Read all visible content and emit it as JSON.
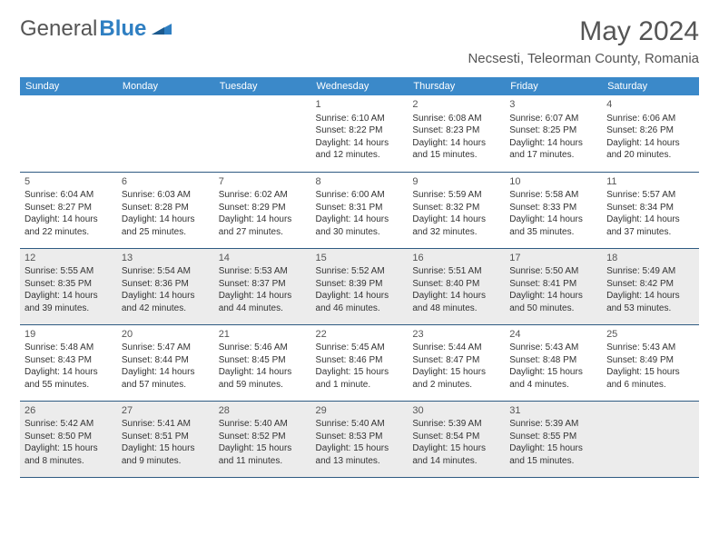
{
  "logo": {
    "part1": "General",
    "part2": "Blue"
  },
  "title": "May 2024",
  "location": "Necsesti, Teleorman County, Romania",
  "header_bg": "#3b89c9",
  "shaded_bg": "#ececec",
  "border_color": "#2f5b82",
  "days_of_week": [
    "Sunday",
    "Monday",
    "Tuesday",
    "Wednesday",
    "Thursday",
    "Friday",
    "Saturday"
  ],
  "weeks": [
    {
      "shaded": false,
      "cells": [
        {
          "num": "",
          "sunrise": "",
          "sunset": "",
          "daylight": ""
        },
        {
          "num": "",
          "sunrise": "",
          "sunset": "",
          "daylight": ""
        },
        {
          "num": "",
          "sunrise": "",
          "sunset": "",
          "daylight": ""
        },
        {
          "num": "1",
          "sunrise": "Sunrise: 6:10 AM",
          "sunset": "Sunset: 8:22 PM",
          "daylight": "Daylight: 14 hours and 12 minutes."
        },
        {
          "num": "2",
          "sunrise": "Sunrise: 6:08 AM",
          "sunset": "Sunset: 8:23 PM",
          "daylight": "Daylight: 14 hours and 15 minutes."
        },
        {
          "num": "3",
          "sunrise": "Sunrise: 6:07 AM",
          "sunset": "Sunset: 8:25 PM",
          "daylight": "Daylight: 14 hours and 17 minutes."
        },
        {
          "num": "4",
          "sunrise": "Sunrise: 6:06 AM",
          "sunset": "Sunset: 8:26 PM",
          "daylight": "Daylight: 14 hours and 20 minutes."
        }
      ]
    },
    {
      "shaded": false,
      "cells": [
        {
          "num": "5",
          "sunrise": "Sunrise: 6:04 AM",
          "sunset": "Sunset: 8:27 PM",
          "daylight": "Daylight: 14 hours and 22 minutes."
        },
        {
          "num": "6",
          "sunrise": "Sunrise: 6:03 AM",
          "sunset": "Sunset: 8:28 PM",
          "daylight": "Daylight: 14 hours and 25 minutes."
        },
        {
          "num": "7",
          "sunrise": "Sunrise: 6:02 AM",
          "sunset": "Sunset: 8:29 PM",
          "daylight": "Daylight: 14 hours and 27 minutes."
        },
        {
          "num": "8",
          "sunrise": "Sunrise: 6:00 AM",
          "sunset": "Sunset: 8:31 PM",
          "daylight": "Daylight: 14 hours and 30 minutes."
        },
        {
          "num": "9",
          "sunrise": "Sunrise: 5:59 AM",
          "sunset": "Sunset: 8:32 PM",
          "daylight": "Daylight: 14 hours and 32 minutes."
        },
        {
          "num": "10",
          "sunrise": "Sunrise: 5:58 AM",
          "sunset": "Sunset: 8:33 PM",
          "daylight": "Daylight: 14 hours and 35 minutes."
        },
        {
          "num": "11",
          "sunrise": "Sunrise: 5:57 AM",
          "sunset": "Sunset: 8:34 PM",
          "daylight": "Daylight: 14 hours and 37 minutes."
        }
      ]
    },
    {
      "shaded": true,
      "cells": [
        {
          "num": "12",
          "sunrise": "Sunrise: 5:55 AM",
          "sunset": "Sunset: 8:35 PM",
          "daylight": "Daylight: 14 hours and 39 minutes."
        },
        {
          "num": "13",
          "sunrise": "Sunrise: 5:54 AM",
          "sunset": "Sunset: 8:36 PM",
          "daylight": "Daylight: 14 hours and 42 minutes."
        },
        {
          "num": "14",
          "sunrise": "Sunrise: 5:53 AM",
          "sunset": "Sunset: 8:37 PM",
          "daylight": "Daylight: 14 hours and 44 minutes."
        },
        {
          "num": "15",
          "sunrise": "Sunrise: 5:52 AM",
          "sunset": "Sunset: 8:39 PM",
          "daylight": "Daylight: 14 hours and 46 minutes."
        },
        {
          "num": "16",
          "sunrise": "Sunrise: 5:51 AM",
          "sunset": "Sunset: 8:40 PM",
          "daylight": "Daylight: 14 hours and 48 minutes."
        },
        {
          "num": "17",
          "sunrise": "Sunrise: 5:50 AM",
          "sunset": "Sunset: 8:41 PM",
          "daylight": "Daylight: 14 hours and 50 minutes."
        },
        {
          "num": "18",
          "sunrise": "Sunrise: 5:49 AM",
          "sunset": "Sunset: 8:42 PM",
          "daylight": "Daylight: 14 hours and 53 minutes."
        }
      ]
    },
    {
      "shaded": false,
      "cells": [
        {
          "num": "19",
          "sunrise": "Sunrise: 5:48 AM",
          "sunset": "Sunset: 8:43 PM",
          "daylight": "Daylight: 14 hours and 55 minutes."
        },
        {
          "num": "20",
          "sunrise": "Sunrise: 5:47 AM",
          "sunset": "Sunset: 8:44 PM",
          "daylight": "Daylight: 14 hours and 57 minutes."
        },
        {
          "num": "21",
          "sunrise": "Sunrise: 5:46 AM",
          "sunset": "Sunset: 8:45 PM",
          "daylight": "Daylight: 14 hours and 59 minutes."
        },
        {
          "num": "22",
          "sunrise": "Sunrise: 5:45 AM",
          "sunset": "Sunset: 8:46 PM",
          "daylight": "Daylight: 15 hours and 1 minute."
        },
        {
          "num": "23",
          "sunrise": "Sunrise: 5:44 AM",
          "sunset": "Sunset: 8:47 PM",
          "daylight": "Daylight: 15 hours and 2 minutes."
        },
        {
          "num": "24",
          "sunrise": "Sunrise: 5:43 AM",
          "sunset": "Sunset: 8:48 PM",
          "daylight": "Daylight: 15 hours and 4 minutes."
        },
        {
          "num": "25",
          "sunrise": "Sunrise: 5:43 AM",
          "sunset": "Sunset: 8:49 PM",
          "daylight": "Daylight: 15 hours and 6 minutes."
        }
      ]
    },
    {
      "shaded": true,
      "cells": [
        {
          "num": "26",
          "sunrise": "Sunrise: 5:42 AM",
          "sunset": "Sunset: 8:50 PM",
          "daylight": "Daylight: 15 hours and 8 minutes."
        },
        {
          "num": "27",
          "sunrise": "Sunrise: 5:41 AM",
          "sunset": "Sunset: 8:51 PM",
          "daylight": "Daylight: 15 hours and 9 minutes."
        },
        {
          "num": "28",
          "sunrise": "Sunrise: 5:40 AM",
          "sunset": "Sunset: 8:52 PM",
          "daylight": "Daylight: 15 hours and 11 minutes."
        },
        {
          "num": "29",
          "sunrise": "Sunrise: 5:40 AM",
          "sunset": "Sunset: 8:53 PM",
          "daylight": "Daylight: 15 hours and 13 minutes."
        },
        {
          "num": "30",
          "sunrise": "Sunrise: 5:39 AM",
          "sunset": "Sunset: 8:54 PM",
          "daylight": "Daylight: 15 hours and 14 minutes."
        },
        {
          "num": "31",
          "sunrise": "Sunrise: 5:39 AM",
          "sunset": "Sunset: 8:55 PM",
          "daylight": "Daylight: 15 hours and 15 minutes."
        },
        {
          "num": "",
          "sunrise": "",
          "sunset": "",
          "daylight": ""
        }
      ]
    }
  ]
}
